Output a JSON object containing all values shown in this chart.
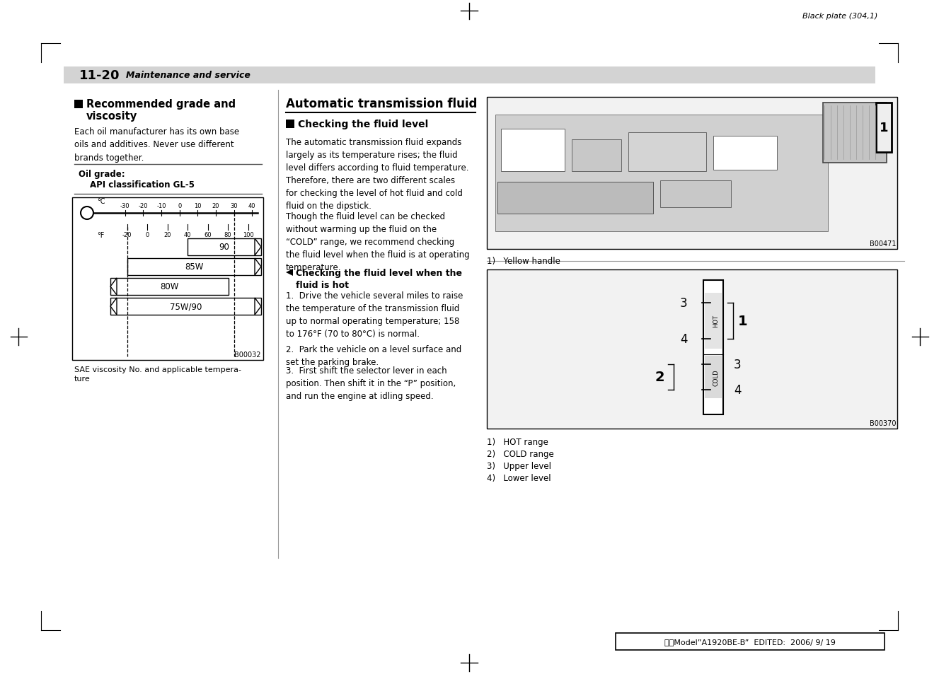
{
  "page_title": "11-20",
  "page_subtitle": "Maintenance and service",
  "header_text": "Black plate (304,1)",
  "footer_text": "北米Model”A1920BE-B”  EDITED:  2006/ 9/ 19",
  "left_section_heading1": "Recommended grade and",
  "left_section_heading2": "viscosity",
  "left_para1": "Each oil manufacturer has its own base\noils and additives. Never use different\nbrands together.",
  "oil_grade_label": "Oil grade:",
  "oil_grade_value": "API classification GL-5",
  "chart_caption": "SAE viscosity No. and applicable tempera-\nture",
  "chart_code": "B00032",
  "celsius_ticks": [
    -30,
    -20,
    -10,
    0,
    10,
    20,
    30,
    40
  ],
  "fahrenheit_ticks": [
    -20,
    0,
    20,
    40,
    60,
    80,
    100
  ],
  "bar_labels": [
    "90",
    "85W",
    "80W",
    "75W/90"
  ],
  "middle_heading": "Automatic transmission fluid",
  "check_heading": "Checking the fluid level",
  "check_para1": "The automatic transmission fluid expands\nlargely as its temperature rises; the fluid\nlevel differs according to fluid temperature.\nTherefore, there are two different scales\nfor checking the level of hot fluid and cold\nfluid on the dipstick.",
  "check_para2": "Though the fluid level can be checked\nwithout warming up the fluid on the\n“COLD” range, we recommend checking\nthe fluid level when the fluid is at operating\ntemperature.",
  "check_sub_heading": "Checking the fluid level when the\nfluid is hot",
  "step1": "1.  Drive the vehicle several miles to raise\nthe temperature of the transmission fluid\nup to normal operating temperature; 158\nto 176°F (70 to 80°C) is normal.",
  "step2": "2.  Park the vehicle on a level surface and\nset the parking brake.",
  "step3": "3.  First shift the selector lever in each\nposition. Then shift it in the “P” position,\nand run the engine at idling speed.",
  "img1_code": "B00471",
  "img1_caption": "1)   Yellow handle",
  "img2_code": "B00370",
  "img2_labels": [
    "1)   HOT range",
    "2)   COLD range",
    "3)   Upper level",
    "4)   Lower level"
  ],
  "bg_color": "#ffffff",
  "text_color": "#000000"
}
